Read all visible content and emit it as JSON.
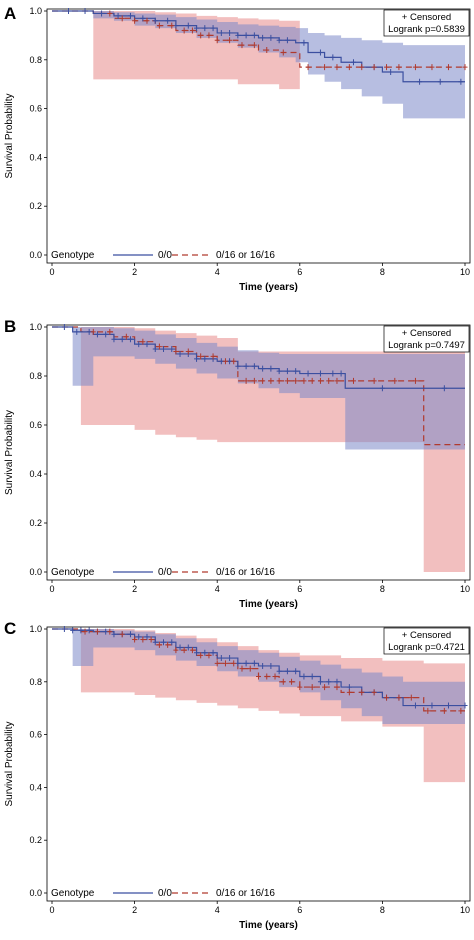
{
  "figure": {
    "background": "#ffffff"
  },
  "colors": {
    "series_a": "#3b4fa0",
    "series_b": "#b03a2e",
    "band_a": "#7c88c8",
    "band_b": "#e88a8a"
  },
  "chart_data": [
    {
      "type": "line",
      "step": true,
      "panel": "A",
      "xlabel": "Time (years)",
      "ylabel": "Survival Probability",
      "xlim": [
        0,
        10
      ],
      "ylim": [
        0,
        1.0
      ],
      "xticks": [
        "0",
        "2",
        "4",
        "6",
        "8",
        "10"
      ],
      "yticks": [
        "0.0",
        "0.2",
        "0.4",
        "0.6",
        "0.8",
        "1.0"
      ],
      "info": {
        "censored_label": "+ Censored",
        "pvalue_label": "Logrank p=0.5839"
      },
      "legend": {
        "title": "Genotype",
        "position": "bottom-left"
      },
      "series": [
        {
          "name": "0/0",
          "style": "solid",
          "x": [
            0,
            1.0,
            1.5,
            2.0,
            2.5,
            3.0,
            3.5,
            4.0,
            4.5,
            5.0,
            5.5,
            5.9,
            6.2,
            6.6,
            7.0,
            7.5,
            8.0,
            8.5,
            10.0
          ],
          "y": [
            1.0,
            0.99,
            0.98,
            0.97,
            0.96,
            0.94,
            0.93,
            0.91,
            0.9,
            0.89,
            0.88,
            0.87,
            0.83,
            0.81,
            0.79,
            0.77,
            0.75,
            0.71,
            0.71
          ],
          "lower": [
            1.0,
            0.97,
            0.96,
            0.94,
            0.93,
            0.91,
            0.89,
            0.87,
            0.85,
            0.83,
            0.81,
            0.79,
            0.74,
            0.71,
            0.68,
            0.65,
            0.62,
            0.56,
            0.56
          ],
          "upper": [
            1.0,
            1.0,
            0.995,
            0.99,
            0.985,
            0.975,
            0.965,
            0.955,
            0.945,
            0.94,
            0.935,
            0.93,
            0.91,
            0.9,
            0.89,
            0.88,
            0.87,
            0.86,
            0.86
          ],
          "censor_x": [
            0.4,
            0.8,
            1.2,
            1.6,
            1.9,
            2.2,
            2.5,
            2.8,
            3.0,
            3.3,
            3.5,
            3.7,
            3.9,
            4.1,
            4.3,
            4.5,
            4.7,
            4.9,
            5.1,
            5.3,
            5.5,
            5.7,
            6.1,
            6.5,
            6.8,
            7.3,
            7.8,
            8.2,
            8.9,
            9.4,
            9.9
          ]
        },
        {
          "name": "0/16 or 16/16",
          "style": "dashed",
          "x": [
            0,
            1.0,
            1.5,
            2.0,
            2.5,
            3.0,
            3.5,
            4.0,
            4.5,
            5.0,
            5.5,
            6.0,
            10.0
          ],
          "y": [
            1.0,
            0.99,
            0.97,
            0.96,
            0.94,
            0.92,
            0.9,
            0.88,
            0.86,
            0.84,
            0.83,
            0.77,
            0.77
          ],
          "lower": [
            1.0,
            0.72,
            0.72,
            0.72,
            0.72,
            0.72,
            0.72,
            0.72,
            0.7,
            0.7,
            0.68,
            0.77,
            0.77
          ],
          "upper": [
            1.0,
            1.0,
            1.0,
            1.0,
            0.995,
            0.99,
            0.98,
            0.975,
            0.97,
            0.965,
            0.96,
            0.77,
            0.77
          ],
          "censor_x": [
            1.4,
            1.7,
            2.0,
            2.3,
            2.6,
            2.9,
            3.2,
            3.4,
            3.6,
            3.8,
            4.0,
            4.3,
            4.6,
            4.9,
            5.2,
            5.6,
            6.2,
            6.6,
            6.9,
            7.2,
            7.5,
            7.8,
            8.1,
            8.4,
            8.8,
            9.2,
            9.6,
            10.0
          ]
        }
      ]
    },
    {
      "type": "line",
      "step": true,
      "panel": "B",
      "xlabel": "Time (years)",
      "ylabel": "Survival Probability",
      "xlim": [
        0,
        10
      ],
      "ylim": [
        0,
        1.0
      ],
      "xticks": [
        "0",
        "2",
        "4",
        "6",
        "8",
        "10"
      ],
      "yticks": [
        "0.0",
        "0.2",
        "0.4",
        "0.6",
        "0.8",
        "1.0"
      ],
      "info": {
        "censored_label": "+ Censored",
        "pvalue_label": "Logrank p=0.7497"
      },
      "legend": {
        "title": "Genotype",
        "position": "bottom-left"
      },
      "series": [
        {
          "name": "0/0",
          "style": "solid",
          "x": [
            0,
            0.5,
            1.0,
            1.5,
            2.0,
            2.5,
            3.0,
            3.5,
            4.0,
            4.5,
            5.0,
            5.5,
            6.0,
            7.1,
            10.0
          ],
          "y": [
            1.0,
            0.98,
            0.97,
            0.95,
            0.93,
            0.91,
            0.89,
            0.87,
            0.86,
            0.84,
            0.83,
            0.82,
            0.81,
            0.75,
            0.75
          ],
          "lower": [
            1.0,
            0.76,
            0.88,
            0.88,
            0.87,
            0.85,
            0.83,
            0.81,
            0.79,
            0.77,
            0.75,
            0.73,
            0.71,
            0.5,
            0.5
          ],
          "upper": [
            1.0,
            1.0,
            1.0,
            0.995,
            0.985,
            0.97,
            0.955,
            0.935,
            0.92,
            0.905,
            0.895,
            0.89,
            0.89,
            0.89,
            0.89
          ],
          "censor_x": [
            0.3,
            0.6,
            0.9,
            1.1,
            1.3,
            1.5,
            1.7,
            1.9,
            2.1,
            2.3,
            2.5,
            2.7,
            2.9,
            3.1,
            3.3,
            3.5,
            3.7,
            3.9,
            4.1,
            4.3,
            4.5,
            4.7,
            4.9,
            5.1,
            5.3,
            5.5,
            5.7,
            5.9,
            6.2,
            6.5,
            6.8,
            7.0,
            8.0,
            9.5
          ]
        },
        {
          "name": "0/16 or 16/16",
          "style": "dashed",
          "x": [
            0,
            0.7,
            1.5,
            2.0,
            2.5,
            3.0,
            3.5,
            4.0,
            4.5,
            9.0,
            10.0
          ],
          "y": [
            1.0,
            0.98,
            0.96,
            0.94,
            0.92,
            0.9,
            0.88,
            0.86,
            0.78,
            0.52,
            0.52
          ],
          "lower": [
            1.0,
            0.6,
            0.6,
            0.58,
            0.56,
            0.55,
            0.54,
            0.53,
            0.53,
            0.0,
            0.0
          ],
          "upper": [
            1.0,
            1.0,
            1.0,
            0.995,
            0.985,
            0.975,
            0.965,
            0.955,
            0.9,
            0.9,
            0.9
          ],
          "censor_x": [
            1.0,
            1.4,
            1.8,
            2.2,
            2.6,
            3.0,
            3.3,
            3.6,
            3.9,
            4.2,
            4.4,
            4.7,
            4.9,
            5.1,
            5.3,
            5.5,
            5.7,
            5.9,
            6.1,
            6.3,
            6.5,
            6.7,
            6.9,
            7.3,
            7.8,
            8.3,
            8.8
          ]
        }
      ]
    },
    {
      "type": "line",
      "step": true,
      "panel": "C",
      "xlabel": "Time (years)",
      "ylabel": "Survival Probability",
      "xlim": [
        0,
        10
      ],
      "ylim": [
        0,
        1.0
      ],
      "xticks": [
        "0",
        "2",
        "4",
        "6",
        "8",
        "10"
      ],
      "yticks": [
        "0.0",
        "0.2",
        "0.4",
        "0.6",
        "0.8",
        "1.0"
      ],
      "info": {
        "censored_label": "+ Censored",
        "pvalue_label": "Logrank p=0.4721"
      },
      "legend": {
        "title": "Genotype",
        "position": "bottom-left"
      },
      "series": [
        {
          "name": "0/0",
          "style": "solid",
          "x": [
            0,
            0.5,
            1.0,
            1.5,
            2.0,
            2.5,
            3.0,
            3.5,
            4.0,
            4.5,
            5.0,
            5.5,
            6.0,
            6.5,
            7.0,
            7.5,
            8.0,
            8.5,
            10.0
          ],
          "y": [
            1.0,
            0.995,
            0.99,
            0.98,
            0.97,
            0.95,
            0.93,
            0.91,
            0.89,
            0.87,
            0.86,
            0.84,
            0.82,
            0.8,
            0.78,
            0.76,
            0.74,
            0.71,
            0.71
          ],
          "lower": [
            1.0,
            0.86,
            0.93,
            0.93,
            0.92,
            0.9,
            0.88,
            0.86,
            0.84,
            0.82,
            0.8,
            0.78,
            0.76,
            0.73,
            0.7,
            0.67,
            0.64,
            0.64,
            0.64
          ],
          "upper": [
            1.0,
            1.0,
            1.0,
            0.995,
            0.99,
            0.98,
            0.965,
            0.95,
            0.935,
            0.92,
            0.91,
            0.895,
            0.88,
            0.865,
            0.85,
            0.835,
            0.82,
            0.8,
            0.8
          ],
          "censor_x": [
            0.3,
            0.5,
            0.7,
            0.9,
            1.1,
            1.3,
            1.5,
            1.7,
            1.9,
            2.1,
            2.3,
            2.5,
            2.7,
            2.9,
            3.1,
            3.3,
            3.5,
            3.7,
            3.9,
            4.1,
            4.3,
            4.5,
            4.7,
            4.9,
            5.1,
            5.3,
            5.5,
            5.7,
            5.9,
            6.1,
            6.3,
            6.5,
            6.7,
            6.9,
            7.2,
            7.5,
            7.8,
            8.1,
            8.4,
            8.8,
            9.2,
            9.6,
            10.0
          ]
        },
        {
          "name": "0/16 or 16/16",
          "style": "dashed",
          "x": [
            0,
            0.7,
            1.5,
            2.0,
            2.5,
            3.0,
            3.5,
            4.0,
            4.5,
            5.0,
            5.5,
            6.0,
            7.0,
            8.0,
            9.0,
            10.0
          ],
          "y": [
            1.0,
            0.99,
            0.98,
            0.96,
            0.94,
            0.92,
            0.9,
            0.87,
            0.85,
            0.82,
            0.8,
            0.78,
            0.76,
            0.74,
            0.69,
            0.69
          ],
          "lower": [
            1.0,
            0.76,
            0.76,
            0.75,
            0.74,
            0.73,
            0.72,
            0.71,
            0.7,
            0.69,
            0.68,
            0.67,
            0.65,
            0.63,
            0.42,
            0.42
          ],
          "upper": [
            1.0,
            1.0,
            1.0,
            0.995,
            0.985,
            0.975,
            0.965,
            0.95,
            0.935,
            0.92,
            0.91,
            0.9,
            0.89,
            0.88,
            0.87,
            0.87
          ],
          "censor_x": [
            0.8,
            1.1,
            1.4,
            1.7,
            2.0,
            2.2,
            2.4,
            2.6,
            2.8,
            3.0,
            3.2,
            3.4,
            3.6,
            3.8,
            4.0,
            4.2,
            4.4,
            4.6,
            4.8,
            5.0,
            5.2,
            5.4,
            5.6,
            5.8,
            6.0,
            6.3,
            6.6,
            6.9,
            7.2,
            7.5,
            7.8,
            8.1,
            8.4,
            8.7,
            9.1,
            9.5,
            9.9
          ]
        }
      ]
    }
  ]
}
